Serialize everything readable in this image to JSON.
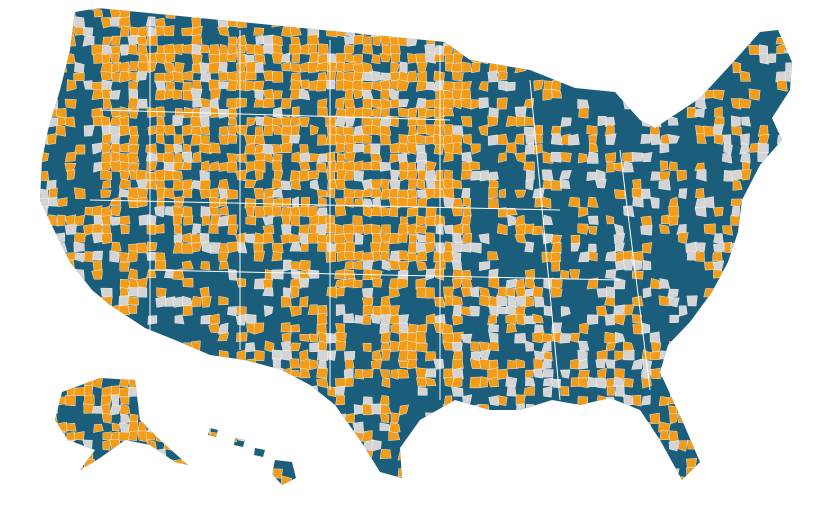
{
  "map": {
    "colors": [
      "#1b5e7b",
      "#f39c1a",
      "#d4d4d4"
    ]
  }
}
